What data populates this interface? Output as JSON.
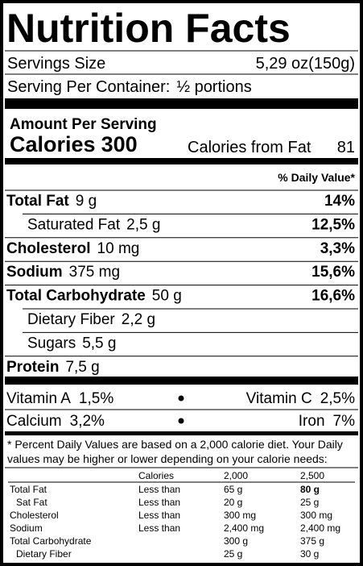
{
  "title": "Nutrition Facts",
  "serving_size": {
    "label": "Servings Size",
    "value": "5,29 oz(150g)"
  },
  "servings_per_container": {
    "label": "Serving Per Container:",
    "value": "½ portions"
  },
  "amount_per_serving": "Amount Per Serving",
  "calories": {
    "label": "Calories",
    "value": "300"
  },
  "calories_from_fat": {
    "label": "Calories from Fat",
    "value": "81"
  },
  "daily_value_header": "% Daily Value*",
  "nutrients": [
    {
      "name": "Total Fat",
      "amount": "9 g",
      "daily_value": "14%"
    },
    {
      "name": "Saturated Fat",
      "amount": "2,5 g",
      "daily_value": "12,5%"
    },
    {
      "name": "Cholesterol",
      "amount": "10 mg",
      "daily_value": "3,3%"
    },
    {
      "name": "Sodium",
      "amount": "375 mg",
      "daily_value": "15,6%"
    },
    {
      "name": "Total Carbohydrate",
      "amount": "50 g",
      "daily_value": "16,6%"
    },
    {
      "name": "Dietary Fiber",
      "amount": "2,2 g"
    },
    {
      "name": "Sugars",
      "amount": "5,5 g"
    },
    {
      "name": "Protein",
      "amount": "7,5 g"
    }
  ],
  "vitamins": [
    {
      "name": "Vitamin A",
      "value": "1,5%"
    },
    {
      "name": "Vitamin C",
      "value": "2,5%"
    },
    {
      "name": "Calcium",
      "value": "3,2%"
    },
    {
      "name": "Iron",
      "value": "7%"
    }
  ],
  "footnote": [
    "* Percent Daily Values are based on a 2,000 calorie diet. Your Daily",
    "values may be higher or lower depending on your calorie needs:"
  ],
  "reference_table": {
    "header": [
      "Calories",
      "2,000",
      "2,500"
    ],
    "rows": [
      [
        "Total Fat",
        "Less than",
        "65 g",
        "80 g"
      ],
      [
        "Sat Fat",
        "Less than",
        "20 g",
        "25 g"
      ],
      [
        "Cholesterol",
        "Less than",
        "300 mg",
        "300 mg"
      ],
      [
        "Sodium",
        "Less than",
        "2,400 mg",
        "2,400 mg"
      ],
      [
        "Total Carbohydrate",
        null,
        "300 g",
        "375 g"
      ],
      [
        "Dietary Fiber",
        null,
        "25 g",
        "30 g"
      ]
    ]
  }
}
